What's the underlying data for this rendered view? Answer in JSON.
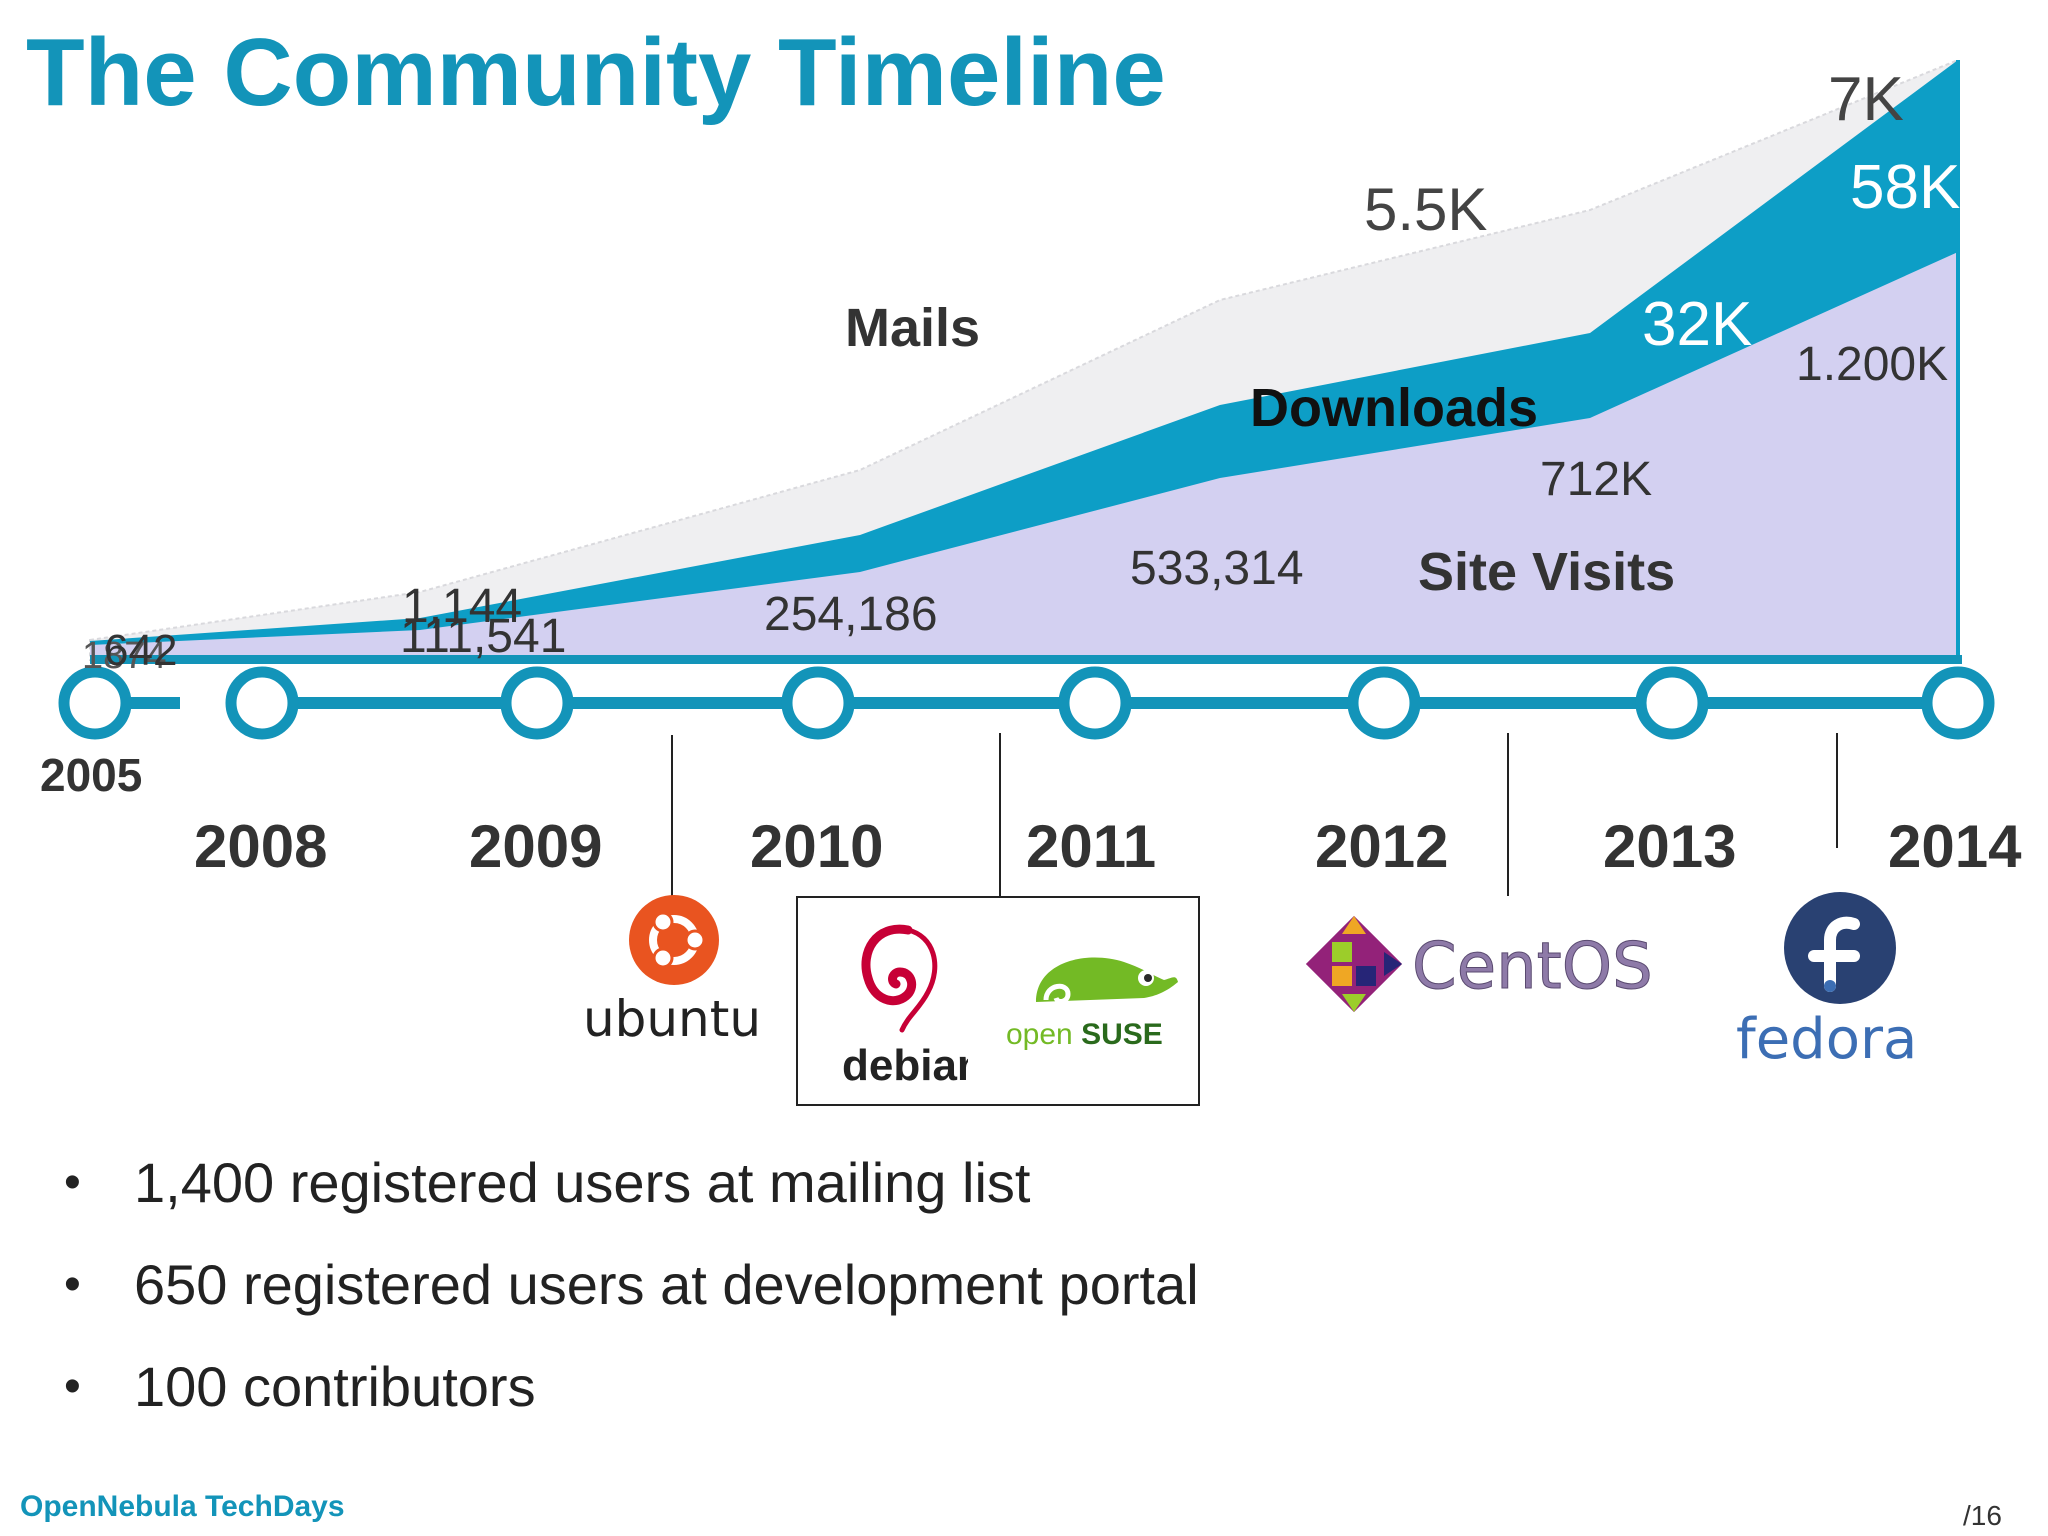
{
  "title": "The Community Timeline",
  "years": [
    "2005",
    "2008",
    "2009",
    "2010",
    "2011",
    "2012",
    "2013",
    "2014"
  ],
  "series_labels": {
    "mails": "Mails",
    "downloads": "Downloads",
    "site_visits": "Site Visits"
  },
  "annotations": {
    "a_1874": "1874",
    "a_642": "642",
    "a_1144": "1,144",
    "a_111541": "111,541",
    "a_254186": "254,186",
    "a_533314": "533,314",
    "a_5_5k": "5.5K",
    "a_712k": "712K",
    "a_32k": "32K",
    "a_7k": "7K",
    "a_58k": "58K",
    "a_1200k": "1.200K"
  },
  "logos": {
    "ubuntu": "ubuntu",
    "debian": "debian",
    "opensuse_open": "open",
    "opensuse_suse": "SUSE",
    "centos": "CentOS",
    "fedora": "fedora"
  },
  "bullets": [
    "1,400 registered users at mailing list",
    "650 registered users at development portal",
    "100 contributors"
  ],
  "footer": "OpenNebula TechDays",
  "page_number": "/16",
  "colors": {
    "brand": "#1394b9",
    "mails_area": "#efeff1",
    "downloads_area": "#0d9ec6",
    "visits_area": "#d3d0f1"
  }
}
